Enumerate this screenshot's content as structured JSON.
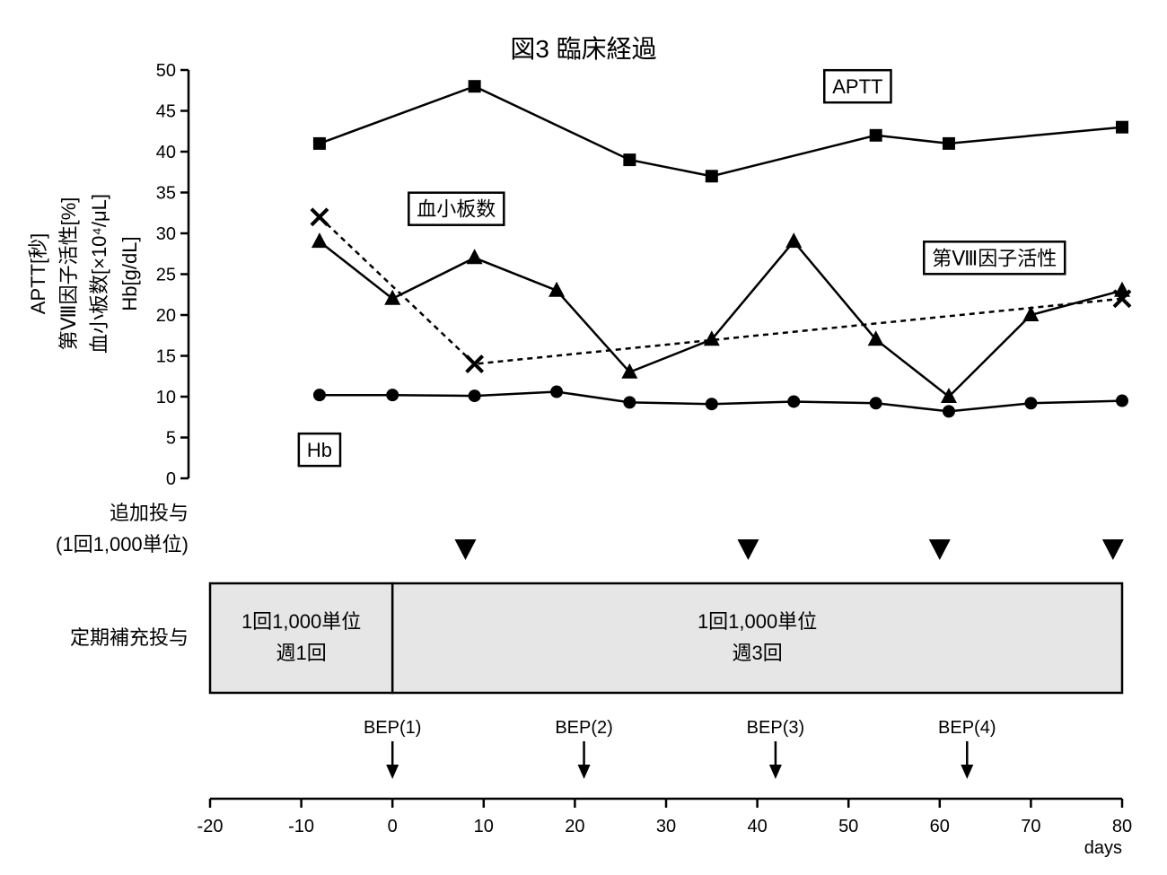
{
  "chart_data": {
    "type": "line",
    "title": "図3 臨床経過",
    "ylabel_lines": [
      "APTT[秒]",
      "第Ⅷ因子活性[%]",
      "血小板数[×10⁴/μL]",
      "Hb[g/dL]"
    ],
    "ylim": [
      0,
      50
    ],
    "yticks": [
      0,
      5,
      10,
      15,
      20,
      25,
      30,
      35,
      40,
      45,
      50
    ],
    "xlim": [
      -20,
      80
    ],
    "xticks": [
      -20,
      -10,
      0,
      10,
      20,
      30,
      40,
      50,
      60,
      70,
      80
    ],
    "xunit": "days",
    "grid": false,
    "series": [
      {
        "name": "APTT",
        "marker": "square",
        "dash": false,
        "points": [
          [
            -8,
            41
          ],
          [
            9,
            48
          ],
          [
            26,
            39
          ],
          [
            35,
            37
          ],
          [
            53,
            42
          ],
          [
            61,
            41
          ],
          [
            80,
            43
          ]
        ]
      },
      {
        "name": "第Ⅷ因子活性",
        "marker": "triangle",
        "dash": false,
        "points": [
          [
            -8,
            29
          ],
          [
            0,
            22
          ],
          [
            9,
            27
          ],
          [
            18,
            23
          ],
          [
            26,
            13
          ],
          [
            35,
            17
          ],
          [
            44,
            29
          ],
          [
            53,
            17
          ],
          [
            61,
            10
          ],
          [
            70,
            20
          ],
          [
            80,
            23
          ]
        ]
      },
      {
        "name": "血小板数",
        "marker": "cross",
        "dash": true,
        "points": [
          [
            -8,
            32
          ],
          [
            9,
            14
          ],
          [
            80,
            22
          ]
        ]
      },
      {
        "name": "Hb",
        "marker": "circle",
        "dash": false,
        "points": [
          [
            -8,
            10.2
          ],
          [
            0,
            10.2
          ],
          [
            9,
            10.1
          ],
          [
            18,
            10.6
          ],
          [
            26,
            9.3
          ],
          [
            35,
            9.1
          ],
          [
            44,
            9.4
          ],
          [
            53,
            9.2
          ],
          [
            61,
            8.2
          ],
          [
            70,
            9.2
          ],
          [
            80,
            9.5
          ]
        ]
      }
    ],
    "series_labels": [
      {
        "series": "APTT",
        "text": "APTT",
        "at": [
          51,
          48
        ]
      },
      {
        "series": "血小板数",
        "text": "血小板数",
        "at": [
          7,
          33
        ]
      },
      {
        "series": "第Ⅷ因子活性",
        "text": "第Ⅷ因子活性",
        "at": [
          66,
          27
        ]
      },
      {
        "series": "Hb",
        "text": "Hb",
        "at": [
          -8,
          3.5
        ]
      }
    ],
    "additional_dose": {
      "label_lines": [
        "追加投与",
        "(1回1,000単位)"
      ],
      "days": [
        8,
        39,
        60,
        79
      ]
    },
    "regular_dose": {
      "label": "定期補充投与",
      "periods": [
        {
          "start": -20,
          "end": 0,
          "lines": [
            "1回1,000単位",
            "週1回"
          ]
        },
        {
          "start": 0,
          "end": 80,
          "lines": [
            "1回1,000単位",
            "週3回"
          ]
        }
      ]
    },
    "bep": [
      {
        "label": "BEP(1)",
        "day": 0
      },
      {
        "label": "BEP(2)",
        "day": 21
      },
      {
        "label": "BEP(3)",
        "day": 42
      },
      {
        "label": "BEP(4)",
        "day": 63
      }
    ]
  }
}
